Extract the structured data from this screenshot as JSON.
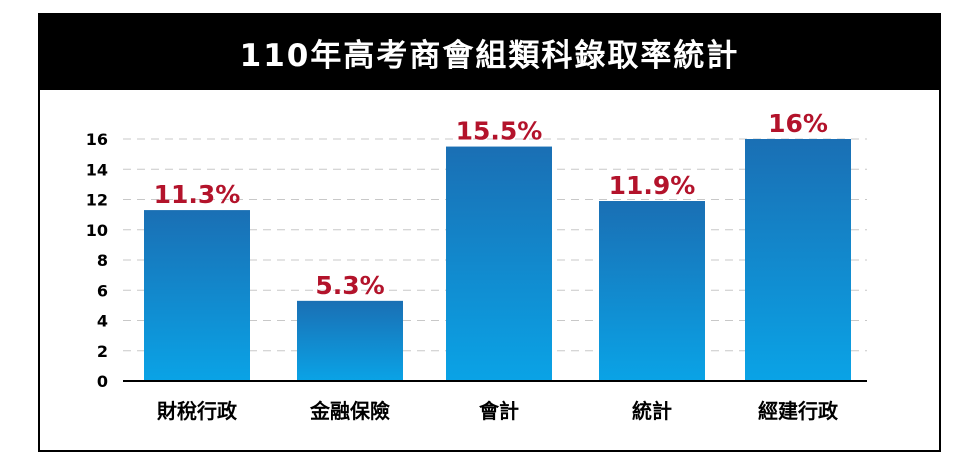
{
  "title": "110年高考商會組類科錄取率統計",
  "chart_data": {
    "type": "bar",
    "title": "110年高考商會組類科錄取率統計",
    "categories": [
      "財稅行政",
      "金融保險",
      "會計",
      "統計",
      "經建行政"
    ],
    "values": [
      11.3,
      5.3,
      15.5,
      11.9,
      16
    ],
    "data_labels": [
      "11.3%",
      "5.3%",
      "15.5%",
      "11.9%",
      "16%"
    ],
    "ylim": [
      0,
      16
    ],
    "yticks": [
      "0",
      "2",
      "4",
      "6",
      "8",
      "10",
      "12",
      "14",
      "16"
    ],
    "grid": true,
    "xlabel": "",
    "ylabel": ""
  },
  "colors": {
    "bar_top": "#1a6fb4",
    "bar_bottom": "#0aa3e6",
    "label": "#b3132b",
    "grid": "#c8c8c8"
  }
}
